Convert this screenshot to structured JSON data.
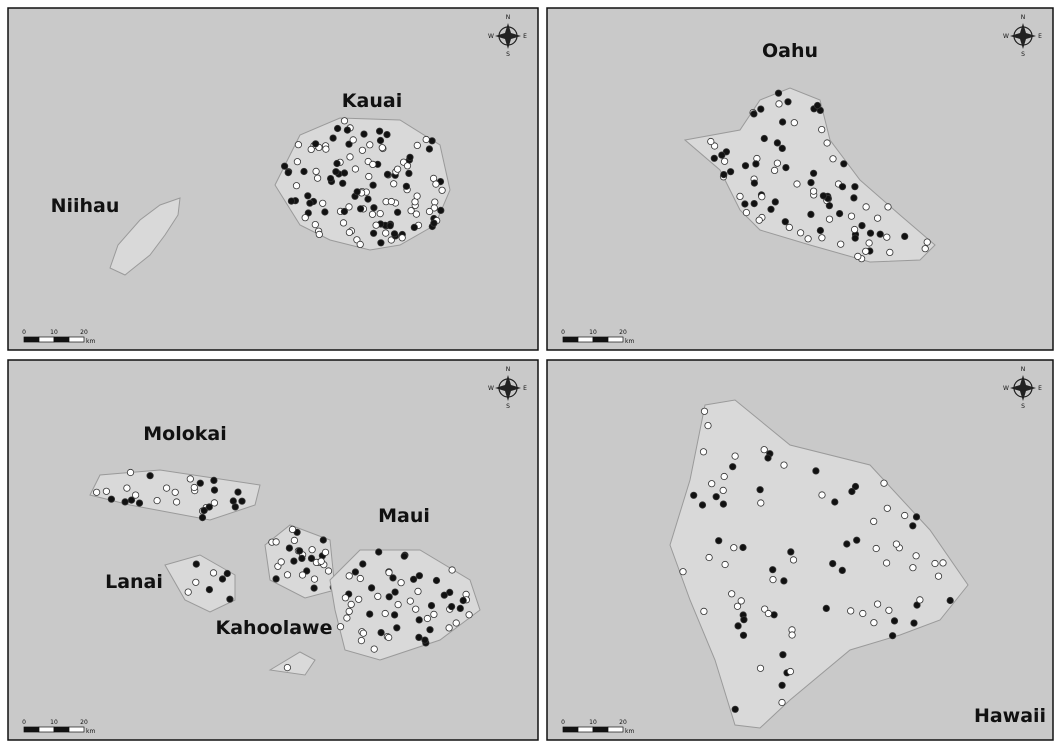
{
  "panels": [
    {
      "islands": [
        "Niihau",
        "Kauai"
      ]
    },
    {
      "islands": [
        "Oahu"
      ]
    },
    {
      "islands": [
        "Molokai",
        "Maui",
        "Lanai",
        "Kahoolawe"
      ]
    },
    {
      "islands": [
        "Hawaii"
      ]
    }
  ],
  "compass": {
    "n": "N",
    "s": "S",
    "e": "E",
    "w": "W"
  },
  "scale_bar": {
    "ticks": [
      "0",
      "10",
      "20"
    ],
    "unit": "km"
  }
}
